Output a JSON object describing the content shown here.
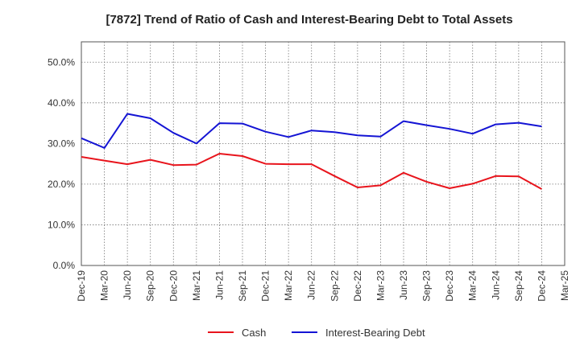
{
  "chart_data": {
    "type": "line",
    "title": "[7872]  Trend of Ratio of Cash and Interest-Bearing Debt to Total Assets",
    "xlabel": "",
    "ylabel": "",
    "ylim": [
      0,
      55
    ],
    "y_ticks": [
      "0.0%",
      "10.0%",
      "20.0%",
      "30.0%",
      "40.0%",
      "50.0%"
    ],
    "y_tick_values": [
      0,
      10,
      20,
      30,
      40,
      50
    ],
    "categories": [
      "Dec-19",
      "Mar-20",
      "Jun-20",
      "Sep-20",
      "Dec-20",
      "Mar-21",
      "Jun-21",
      "Sep-21",
      "Dec-21",
      "Mar-22",
      "Jun-22",
      "Sep-22",
      "Dec-22",
      "Mar-23",
      "Jun-23",
      "Sep-23",
      "Dec-23",
      "Mar-24",
      "Jun-24",
      "Sep-24",
      "Dec-24",
      "Mar-25"
    ],
    "grid": true,
    "legend_position": "bottom",
    "series": [
      {
        "name": "Cash",
        "color": "#e8141c",
        "values": [
          26.7,
          25.8,
          24.9,
          26.0,
          24.7,
          24.8,
          27.5,
          26.9,
          25.0,
          24.9,
          24.9,
          22.0,
          19.2,
          19.7,
          22.8,
          20.6,
          19.0,
          20.1,
          22.0,
          21.9,
          18.8,
          null
        ]
      },
      {
        "name": "Interest-Bearing Debt",
        "color": "#1414d4",
        "values": [
          31.3,
          28.9,
          37.3,
          36.2,
          32.6,
          30.0,
          35.0,
          34.9,
          32.9,
          31.6,
          33.2,
          32.8,
          32.0,
          31.7,
          35.5,
          34.5,
          33.6,
          32.4,
          34.7,
          35.1,
          34.2,
          null
        ]
      }
    ]
  }
}
